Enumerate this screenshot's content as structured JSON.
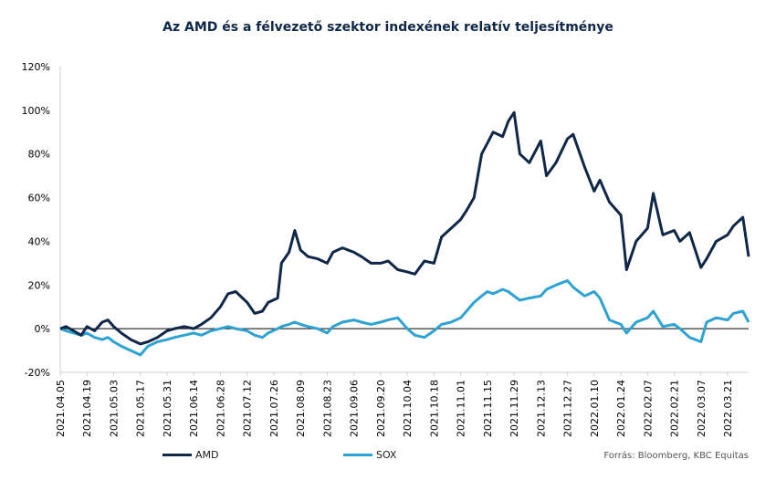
{
  "chart_data": {
    "type": "line",
    "title": "Az AMD és a félvezető szektor indexének  relatív teljesítménye",
    "source": "Forrás: Bloomberg, KBC Equitas",
    "y_tick_labels": [
      "-20%",
      "0%",
      "20%",
      "40%",
      "60%",
      "80%",
      "100%",
      "120%"
    ],
    "y_tick_values": [
      -20,
      0,
      20,
      40,
      60,
      80,
      100,
      120
    ],
    "ylim": [
      -20,
      120
    ],
    "x_tick_labels": [
      "2021.04.05",
      "2021.04.19",
      "2021.05.03",
      "2021.05.17",
      "2021.05.31",
      "2021.06.14",
      "2021.06.28",
      "2021.07.12",
      "2021.07.26",
      "2021.08.09",
      "2021.08.23",
      "2021.09.06",
      "2021.09.20",
      "2021.10.04",
      "2021.10.18",
      "2021.11.01",
      "2021.11.15",
      "2021.11.29",
      "2021.12.13",
      "2021.12.27",
      "2022.01.10",
      "2022.01.24",
      "2022.02.07",
      "2022.02.21",
      "2022.03.07",
      "2022.03.21"
    ],
    "xlim": [
      "2021.04.05",
      "2022.04.01"
    ],
    "grid": false,
    "legend_position": "bottom",
    "series": [
      {
        "name": "AMD",
        "color": "#0f2748",
        "x": [
          "2021.04.05",
          "2021.04.08",
          "2021.04.12",
          "2021.04.16",
          "2021.04.19",
          "2021.04.23",
          "2021.04.27",
          "2021.04.30",
          "2021.05.03",
          "2021.05.07",
          "2021.05.12",
          "2021.05.17",
          "2021.05.21",
          "2021.05.26",
          "2021.05.31",
          "2021.06.04",
          "2021.06.09",
          "2021.06.14",
          "2021.06.18",
          "2021.06.23",
          "2021.06.28",
          "2021.07.02",
          "2021.07.06",
          "2021.07.12",
          "2021.07.16",
          "2021.07.20",
          "2021.07.23",
          "2021.07.28",
          "2021.07.30",
          "2021.08.03",
          "2021.08.06",
          "2021.08.09",
          "2021.08.13",
          "2021.08.18",
          "2021.08.23",
          "2021.08.26",
          "2021.08.31",
          "2021.09.06",
          "2021.09.10",
          "2021.09.15",
          "2021.09.20",
          "2021.09.24",
          "2021.09.29",
          "2021.10.04",
          "2021.10.08",
          "2021.10.13",
          "2021.10.18",
          "2021.10.22",
          "2021.10.27",
          "2021.11.01",
          "2021.11.04",
          "2021.11.08",
          "2021.11.12",
          "2021.11.15",
          "2021.11.18",
          "2021.11.23",
          "2021.11.26",
          "2021.11.29",
          "2021.12.02",
          "2021.12.07",
          "2021.12.13",
          "2021.12.16",
          "2021.12.21",
          "2021.12.27",
          "2021.12.30",
          "2022.01.05",
          "2022.01.10",
          "2022.01.13",
          "2022.01.18",
          "2022.01.24",
          "2022.01.27",
          "2022.02.01",
          "2022.02.07",
          "2022.02.10",
          "2022.02.15",
          "2022.02.21",
          "2022.02.24",
          "2022.03.01",
          "2022.03.07",
          "2022.03.10",
          "2022.03.15",
          "2022.03.21",
          "2022.03.24",
          "2022.03.29",
          "2022.04.01"
        ],
        "values": [
          0,
          1,
          -1,
          -3,
          1,
          -1,
          3,
          4,
          1,
          -2,
          -5,
          -7,
          -6,
          -4,
          -1,
          0,
          1,
          0,
          2,
          5,
          10,
          16,
          17,
          12,
          7,
          8,
          12,
          14,
          30,
          35,
          45,
          36,
          33,
          32,
          30,
          35,
          37,
          35,
          33,
          30,
          30,
          31,
          27,
          26,
          25,
          31,
          30,
          42,
          46,
          50,
          54,
          60,
          80,
          85,
          90,
          88,
          95,
          99,
          80,
          76,
          86,
          70,
          76,
          87,
          89,
          74,
          63,
          68,
          58,
          52,
          27,
          40,
          46,
          62,
          43,
          45,
          40,
          44,
          28,
          32,
          40,
          43,
          47,
          51,
          33
        ]
      },
      {
        "name": "SOX",
        "color": "#2ea3d3",
        "x": [
          "2021.04.05",
          "2021.04.08",
          "2021.04.12",
          "2021.04.16",
          "2021.04.19",
          "2021.04.23",
          "2021.04.27",
          "2021.04.30",
          "2021.05.03",
          "2021.05.07",
          "2021.05.12",
          "2021.05.17",
          "2021.05.21",
          "2021.05.26",
          "2021.05.31",
          "2021.06.04",
          "2021.06.09",
          "2021.06.14",
          "2021.06.18",
          "2021.06.23",
          "2021.06.28",
          "2021.07.02",
          "2021.07.06",
          "2021.07.12",
          "2021.07.16",
          "2021.07.20",
          "2021.07.23",
          "2021.07.28",
          "2021.07.30",
          "2021.08.03",
          "2021.08.06",
          "2021.08.09",
          "2021.08.13",
          "2021.08.18",
          "2021.08.23",
          "2021.08.26",
          "2021.08.31",
          "2021.09.06",
          "2021.09.10",
          "2021.09.15",
          "2021.09.20",
          "2021.09.24",
          "2021.09.29",
          "2021.10.04",
          "2021.10.08",
          "2021.10.13",
          "2021.10.18",
          "2021.10.22",
          "2021.10.27",
          "2021.11.01",
          "2021.11.04",
          "2021.11.08",
          "2021.11.12",
          "2021.11.15",
          "2021.11.18",
          "2021.11.23",
          "2021.11.26",
          "2021.11.29",
          "2021.12.02",
          "2021.12.07",
          "2021.12.13",
          "2021.12.16",
          "2021.12.21",
          "2021.12.27",
          "2021.12.30",
          "2022.01.05",
          "2022.01.10",
          "2022.01.13",
          "2022.01.18",
          "2022.01.24",
          "2022.01.27",
          "2022.02.01",
          "2022.02.07",
          "2022.02.10",
          "2022.02.15",
          "2022.02.21",
          "2022.02.24",
          "2022.03.01",
          "2022.03.07",
          "2022.03.10",
          "2022.03.15",
          "2022.03.21",
          "2022.03.24",
          "2022.03.29",
          "2022.04.01"
        ],
        "values": [
          0,
          -1,
          -2,
          -3,
          -2,
          -4,
          -5,
          -4,
          -6,
          -8,
          -10,
          -12,
          -8,
          -6,
          -5,
          -4,
          -3,
          -2,
          -3,
          -1,
          0,
          1,
          0,
          -1,
          -3,
          -4,
          -2,
          0,
          1,
          2,
          3,
          2,
          1,
          0,
          -2,
          1,
          3,
          4,
          3,
          2,
          3,
          4,
          5,
          0,
          -3,
          -4,
          -1,
          2,
          3,
          5,
          8,
          12,
          15,
          17,
          16,
          18,
          17,
          15,
          13,
          14,
          15,
          18,
          20,
          22,
          19,
          15,
          17,
          14,
          4,
          2,
          -2,
          3,
          5,
          8,
          1,
          2,
          0,
          -4,
          -6,
          3,
          5,
          4,
          7,
          8,
          3
        ]
      }
    ]
  }
}
